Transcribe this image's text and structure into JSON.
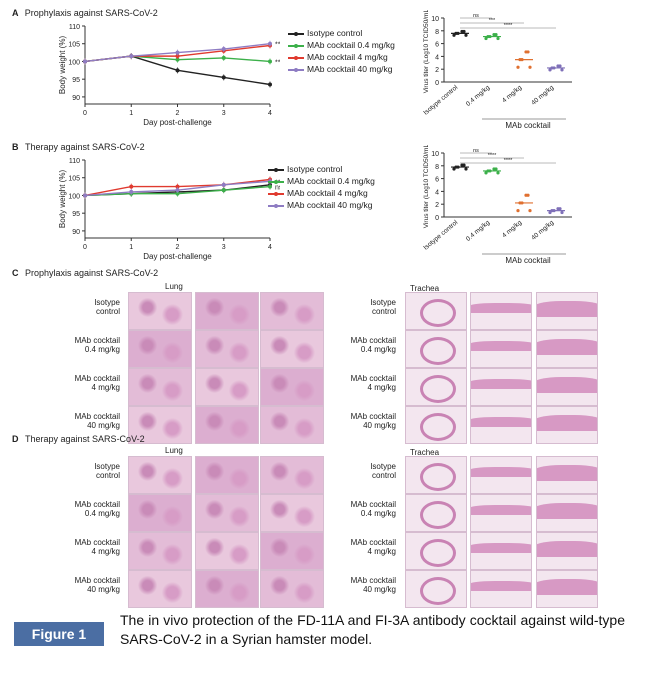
{
  "figure": {
    "panels": {
      "A": {
        "letter": "A",
        "title": "Prophylaxis against SARS-CoV-2"
      },
      "B": {
        "letter": "B",
        "title": "Therapy against SARS-CoV-2"
      },
      "C": {
        "letter": "C",
        "title": "Prophylaxis against SARS-CoV-2"
      },
      "D": {
        "letter": "D",
        "title": "Therapy against SARS-CoV-2"
      }
    },
    "legend": [
      {
        "label": "Isotype control",
        "color": "#222222"
      },
      {
        "label": "MAb cocktail 0.4 mg/kg",
        "color": "#3cb04a"
      },
      {
        "label": "MAb cocktail 4 mg/kg",
        "color": "#e03a2f"
      },
      {
        "label": "MAb cocktail 40 mg/kg",
        "color": "#8e7cc3"
      }
    ],
    "histology": {
      "lung_label": "Lung",
      "trachea_label": "Trachea",
      "row_labels": [
        [
          "Isotype",
          "control"
        ],
        [
          "MAb cocktail",
          "0.4 mg/kg"
        ],
        [
          "MAb cocktail",
          "4 mg/kg"
        ],
        [
          "MAb cocktail",
          "40 mg/kg"
        ]
      ]
    }
  },
  "caption": {
    "label": "Figure 1",
    "text": "The in vivo protection of the FD-11A and FI-3A antibody cocktail against wild-type SARS-CoV-2 in a Syrian hamster model."
  },
  "chart_data": [
    {
      "id": "A-weight",
      "type": "line",
      "xlabel": "Day post-challenge",
      "ylabel": "Body weight (%)",
      "x": [
        0,
        1,
        2,
        3,
        4
      ],
      "ylim": [
        88,
        110
      ],
      "yticks": [
        90,
        95,
        100,
        105,
        110
      ],
      "series": [
        {
          "name": "Isotype control",
          "color": "#222222",
          "values": [
            100,
            101.5,
            97.5,
            95.5,
            93.5
          ]
        },
        {
          "name": "MAb cocktail 0.4 mg/kg",
          "color": "#3cb04a",
          "values": [
            100,
            101.5,
            100.5,
            101,
            100
          ]
        },
        {
          "name": "MAb cocktail 4 mg/kg",
          "color": "#e03a2f",
          "values": [
            100,
            101.5,
            101.5,
            103,
            104.5
          ]
        },
        {
          "name": "MAb cocktail 40 mg/kg",
          "color": "#8e7cc3",
          "values": [
            100,
            101.5,
            102.5,
            103.5,
            105
          ]
        }
      ],
      "annotations": [
        "****",
        "***"
      ]
    },
    {
      "id": "A-titer",
      "type": "scatter",
      "ylabel": "Virus titer (Log10 TCID50/mL)",
      "categories": [
        "Isotype control",
        "0.4 mg/kg",
        "4 mg/kg",
        "40 mg/kg"
      ],
      "group_label": "MAb cocktail",
      "ylim": [
        0,
        10
      ],
      "yticks": [
        0,
        2,
        4,
        6,
        8,
        10
      ],
      "means": [
        7.6,
        7.1,
        3.5,
        2.2
      ],
      "annotations": [
        "ns",
        "***",
        "****"
      ]
    },
    {
      "id": "B-weight",
      "type": "line",
      "xlabel": "Day post-challenge",
      "ylabel": "Body weight (%)",
      "x": [
        0,
        1,
        2,
        3,
        4
      ],
      "ylim": [
        88,
        110
      ],
      "yticks": [
        90,
        95,
        100,
        105,
        110
      ],
      "series": [
        {
          "name": "Isotype control",
          "color": "#222222",
          "values": [
            100,
            100.5,
            101,
            101.5,
            103
          ]
        },
        {
          "name": "MAb cocktail 0.4 mg/kg",
          "color": "#3cb04a",
          "values": [
            100,
            100.5,
            100.5,
            101.5,
            102.5
          ]
        },
        {
          "name": "MAb cocktail 4 mg/kg",
          "color": "#e03a2f",
          "values": [
            100,
            102.5,
            102.5,
            103,
            104.5
          ]
        },
        {
          "name": "MAb cocktail 40 mg/kg",
          "color": "#8e7cc3",
          "values": [
            100,
            101,
            101.5,
            103,
            104
          ]
        }
      ],
      "annotations": [
        "**",
        "ns"
      ]
    },
    {
      "id": "B-titer",
      "type": "scatter",
      "ylabel": "Virus titer (Log10 TCID50/mL)",
      "categories": [
        "Isotype control",
        "0.4 mg/kg",
        "4 mg/kg",
        "40 mg/kg"
      ],
      "group_label": "MAb cocktail",
      "ylim": [
        0,
        10
      ],
      "yticks": [
        0,
        2,
        4,
        6,
        8,
        10
      ],
      "means": [
        7.8,
        7.2,
        2.2,
        1.0
      ],
      "annotations": [
        "ns",
        "****",
        "****"
      ]
    }
  ]
}
